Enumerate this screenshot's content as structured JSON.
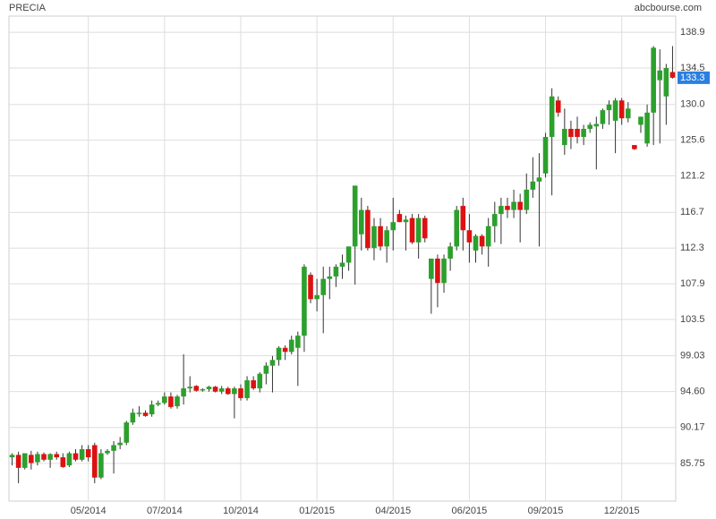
{
  "chart_data": {
    "type": "candlestick",
    "title": "PRECIA",
    "source": "abcbourse.com",
    "categories": [
      null,
      null,
      null,
      null,
      null,
      null,
      null,
      null,
      null,
      null,
      null,
      null,
      "05/2014",
      null,
      null,
      null,
      null,
      null,
      null,
      null,
      null,
      null,
      null,
      null,
      "07/2014",
      null,
      null,
      null,
      null,
      null,
      null,
      null,
      null,
      null,
      null,
      null,
      "10/2014",
      null,
      null,
      null,
      null,
      null,
      null,
      null,
      null,
      null,
      null,
      null,
      "01/2015",
      null,
      null,
      null,
      null,
      null,
      null,
      null,
      null,
      null,
      null,
      null,
      "04/2015",
      null,
      null,
      null,
      null,
      null,
      null,
      null,
      null,
      null,
      null,
      null,
      "06/2015",
      null,
      null,
      null,
      null,
      null,
      null,
      null,
      null,
      null,
      null,
      null,
      "09/2015",
      null,
      null,
      null,
      null,
      null,
      null,
      null,
      null,
      null,
      null,
      null,
      "12/2015",
      null,
      null,
      null,
      null,
      null,
      null,
      null,
      null
    ],
    "open": [
      86.5,
      86.8,
      85.2,
      86.8,
      85.9,
      86.9,
      86.2,
      86.9,
      86.5,
      85.5,
      87,
      86.2,
      87.5,
      88,
      84,
      87,
      87.3,
      88,
      88.3,
      90.8,
      92,
      92,
      91.8,
      93,
      93.2,
      94,
      92.8,
      94,
      95,
      95.3,
      94.8,
      94.9,
      95.2,
      94.6,
      95,
      94.3,
      95,
      93.8,
      96,
      95,
      96.8,
      97.8,
      98.5,
      100,
      99.5,
      100,
      101.5,
      109,
      106,
      106.5,
      108.5,
      108.8,
      110,
      110.5,
      112.5,
      114,
      117,
      112.3,
      115,
      112.5,
      114.5,
      116.5,
      115.5,
      116,
      113,
      116,
      108.5,
      111,
      108,
      111,
      112.5,
      117.5,
      114.5,
      112,
      113.8,
      112.5,
      115,
      116.5,
      117.5,
      117,
      118,
      117,
      119.5,
      120.5,
      121.5,
      126,
      130.5,
      125,
      127,
      127,
      126,
      127,
      127.3,
      127.6,
      129.3,
      128,
      130.5,
      128.3,
      125,
      127.5,
      125.2,
      129,
      133,
      131,
      134
    ],
    "high": [
      87,
      87.2,
      87,
      87.3,
      87.2,
      87.1,
      87,
      87.2,
      87,
      87.2,
      87.5,
      88,
      88,
      88.3,
      87.5,
      87.5,
      88.5,
      89,
      91,
      92.5,
      92.8,
      92.3,
      93.5,
      93.5,
      94.5,
      94.5,
      94.2,
      99.2,
      96.5,
      95.4,
      95,
      95.3,
      95.3,
      95.3,
      95.2,
      95.2,
      95.5,
      96.5,
      96.5,
      97,
      98.2,
      99,
      100.2,
      100.3,
      101.5,
      102,
      110.3,
      109.3,
      108.5,
      110,
      110,
      110.3,
      111.5,
      112.5,
      120,
      118.5,
      117.5,
      116,
      116,
      115,
      118.5,
      117,
      116.3,
      116.5,
      116.5,
      116.3,
      111,
      111.5,
      111.5,
      113,
      117.5,
      118.5,
      116.5,
      114,
      114,
      116,
      118,
      118.5,
      118.5,
      119.5,
      119,
      121.5,
      123.5,
      124,
      126.5,
      132,
      131,
      129.5,
      128,
      128.5,
      127.5,
      127.8,
      128.5,
      129.5,
      130.5,
      130.8,
      130.8,
      130.3,
      125,
      128.5,
      130,
      137.2,
      136.8,
      135,
      137.2
    ],
    "low": [
      85.5,
      83.3,
      85,
      85,
      85.5,
      86,
      85.2,
      86.2,
      85.2,
      85.3,
      86,
      86,
      86,
      83.3,
      83.8,
      86.8,
      84.5,
      87.5,
      88,
      90.5,
      91.5,
      91.5,
      91.5,
      92.8,
      93,
      92.5,
      92.5,
      93,
      94.5,
      94.6,
      94.6,
      94.6,
      94.5,
      94.3,
      94.2,
      91.3,
      93.5,
      93.5,
      94.8,
      94.5,
      95.5,
      94.5,
      97.8,
      98.5,
      99.2,
      95.3,
      99.5,
      105.5,
      104.5,
      101.8,
      106,
      107.5,
      108.5,
      109.5,
      107.8,
      112,
      112,
      110.8,
      112,
      110.5,
      112,
      115.5,
      112,
      112.8,
      111,
      113,
      104.2,
      105,
      106.8,
      109.5,
      112,
      112,
      110.5,
      110.5,
      111.5,
      110,
      113,
      112.8,
      116,
      116,
      113,
      116.5,
      118.5,
      112.5,
      121,
      118.8,
      128.5,
      123.8,
      124.5,
      125.2,
      125,
      126.5,
      122,
      127,
      127.5,
      124,
      127.5,
      127.8,
      124.4,
      126.5,
      124.8,
      125,
      125.2,
      127.5,
      133.2
    ],
    "close": [
      86.8,
      85.2,
      87,
      85.8,
      86.9,
      86.2,
      86.9,
      86.5,
      85.3,
      87,
      86.2,
      87.5,
      86.5,
      84,
      87,
      87.3,
      88,
      88.3,
      90.8,
      92,
      92,
      91.6,
      93,
      93.2,
      94,
      92.7,
      94,
      95,
      95.2,
      94.7,
      94.9,
      95.2,
      94.6,
      95,
      94.3,
      95,
      93.8,
      96,
      95,
      96.8,
      97.8,
      98.5,
      100,
      99.5,
      101,
      101.5,
      110,
      106,
      106.5,
      108.5,
      108.8,
      110,
      110.5,
      112.5,
      120,
      117,
      112.3,
      115,
      112.5,
      114.5,
      115.5,
      115.5,
      115.8,
      113,
      116,
      113.5,
      111,
      108,
      111,
      112.5,
      117,
      114.5,
      113,
      113.8,
      112.5,
      115,
      116.5,
      117.5,
      117,
      118,
      117,
      119.5,
      120.5,
      121,
      126,
      131,
      129,
      127,
      126,
      126,
      127,
      127.5,
      127.6,
      129.3,
      130,
      130.5,
      128.3,
      129.5,
      124.5,
      128.5,
      129,
      137,
      134.2,
      134.5,
      133.3
    ],
    "up_color": "#2ca02c",
    "down_color": "#dd1111",
    "last_color": "#2a7fe0",
    "ylim": [
      81.1,
      140.9
    ],
    "yticks": [
      {
        "value": 85.75,
        "label": "85.75"
      },
      90.17,
      {
        "value": 94.6,
        "label": "94.60"
      },
      99.03,
      103.5,
      107.9,
      112.3,
      116.7,
      121.2,
      125.6,
      {
        "value": 130,
        "label": "130.0"
      },
      134.5,
      138.9
    ],
    "grid": true
  }
}
